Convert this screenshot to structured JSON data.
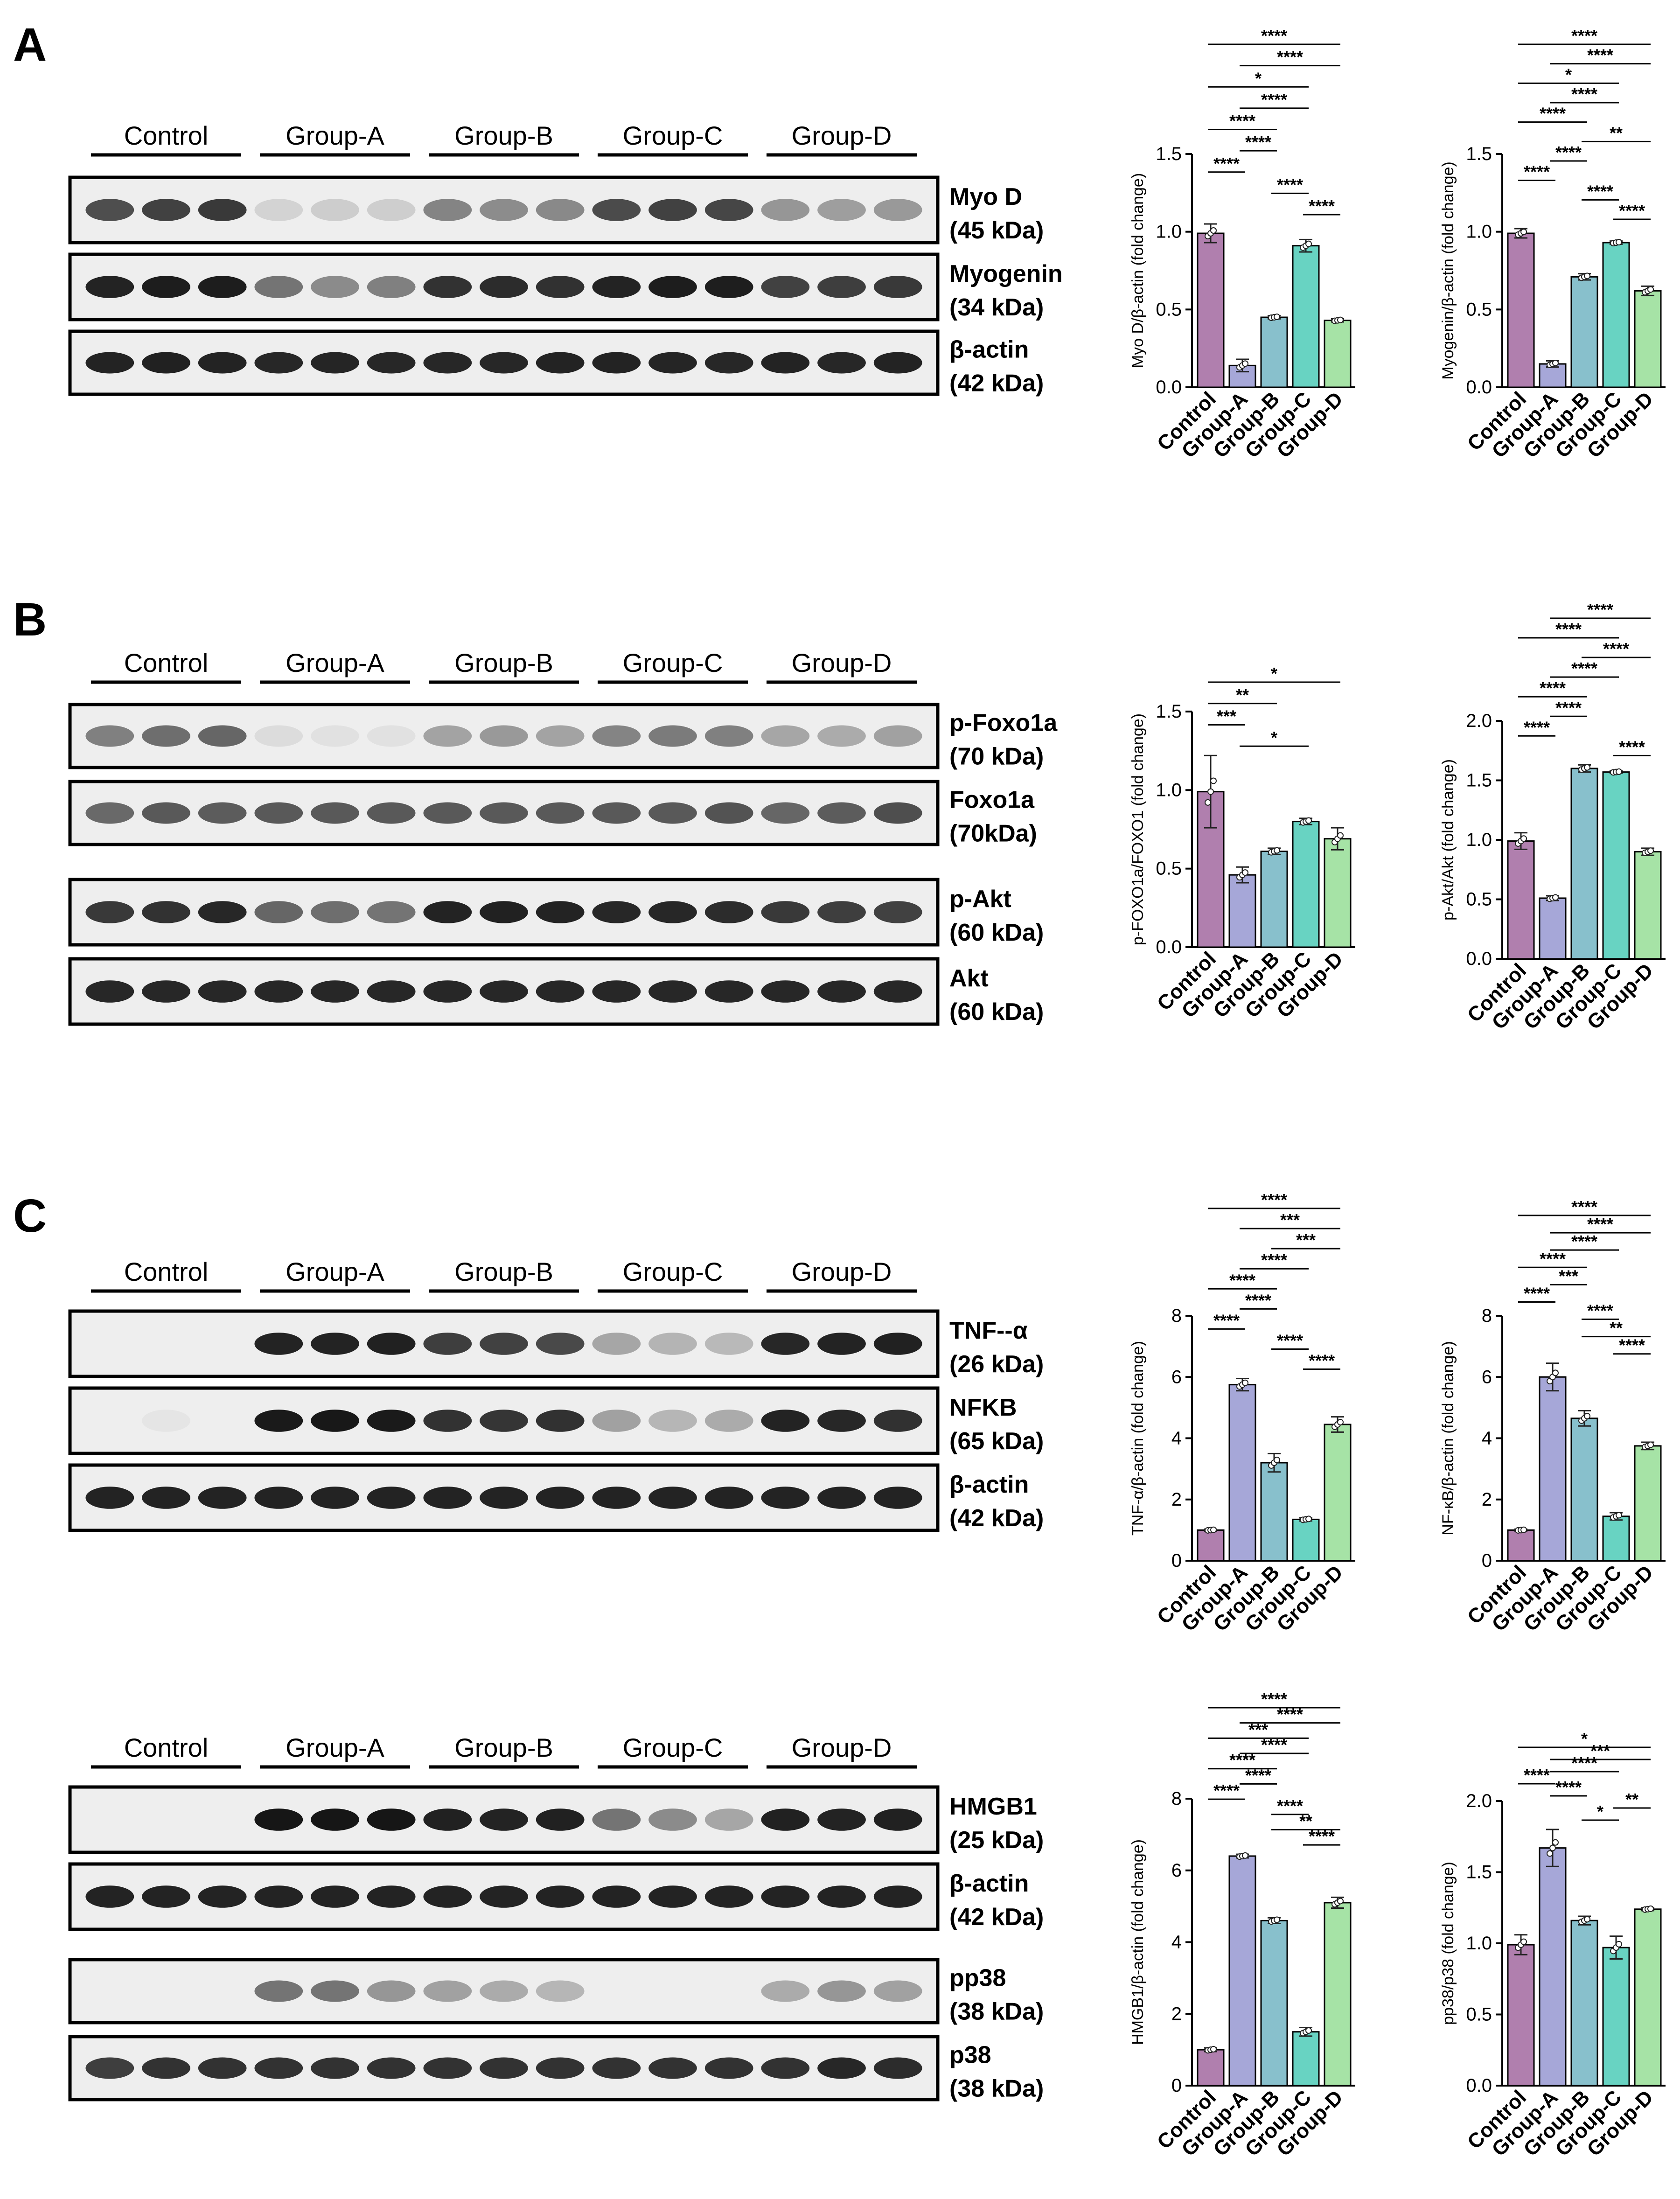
{
  "figure": {
    "groups": [
      "Control",
      "Group-A",
      "Group-B",
      "Group-C",
      "Group-D"
    ],
    "colors": [
      "#b07fae",
      "#a6a7d8",
      "#88c0cc",
      "#68d3c2",
      "#a6e3a6"
    ],
    "panels": {
      "A": {
        "letter": "A",
        "blots": [
          {
            "name": "Myo D",
            "kda": "(45 kDa)",
            "intensity": [
              0.72,
              0.78,
              0.82,
              0.12,
              0.15,
              0.14,
              0.48,
              0.44,
              0.46,
              0.74,
              0.78,
              0.76,
              0.4,
              0.36,
              0.38
            ]
          },
          {
            "name": "Myogenin",
            "kda": "(34 kDa)",
            "intensity": [
              0.92,
              0.95,
              0.95,
              0.55,
              0.45,
              0.5,
              0.85,
              0.88,
              0.86,
              0.92,
              0.95,
              0.94,
              0.78,
              0.8,
              0.82
            ]
          },
          {
            "name": "β-actin",
            "kda": "(42 kDa)",
            "intensity": [
              0.92,
              0.93,
              0.92,
              0.9,
              0.91,
              0.9,
              0.9,
              0.9,
              0.92,
              0.92,
              0.91,
              0.9,
              0.92,
              0.9,
              0.92
            ]
          }
        ]
      },
      "B": {
        "letter": "B",
        "blots": [
          {
            "name": "p-Foxo1a",
            "kda": "(70 kDa)",
            "intensity": [
              0.5,
              0.58,
              0.62,
              0.08,
              0.06,
              0.06,
              0.34,
              0.38,
              0.34,
              0.48,
              0.52,
              0.5,
              0.32,
              0.3,
              0.35
            ]
          },
          {
            "name": "Foxo1a",
            "kda": "(70kDa)",
            "intensity": [
              0.6,
              0.68,
              0.66,
              0.68,
              0.68,
              0.68,
              0.68,
              0.68,
              0.68,
              0.68,
              0.68,
              0.7,
              0.62,
              0.66,
              0.72
            ]
          },
          {
            "name": "p-Akt",
            "kda": "(60 kDa)",
            "intensity": [
              0.82,
              0.85,
              0.9,
              0.62,
              0.58,
              0.55,
              0.92,
              0.93,
              0.92,
              0.9,
              0.9,
              0.88,
              0.82,
              0.8,
              0.78
            ]
          },
          {
            "name": "Akt",
            "kda": "(60 kDa)",
            "intensity": [
              0.9,
              0.9,
              0.9,
              0.9,
              0.9,
              0.9,
              0.9,
              0.9,
              0.9,
              0.9,
              0.9,
              0.9,
              0.9,
              0.9,
              0.9
            ]
          }
        ]
      },
      "C": {
        "letter": "C",
        "blots1": [
          {
            "name": "TNF--α",
            "kda": "(26 kDa)",
            "intensity": [
              0.0,
              0.0,
              0.0,
              0.92,
              0.92,
              0.93,
              0.8,
              0.78,
              0.75,
              0.32,
              0.26,
              0.24,
              0.9,
              0.92,
              0.93
            ]
          },
          {
            "name": "NFKB",
            "kda": "(65 kDa)",
            "intensity": [
              0.0,
              0.04,
              0.0,
              0.96,
              0.97,
              0.96,
              0.85,
              0.84,
              0.86,
              0.35,
              0.25,
              0.3,
              0.92,
              0.9,
              0.86
            ]
          },
          {
            "name": "β-actin",
            "kda": "(42 kDa)",
            "intensity": [
              0.92,
              0.92,
              0.92,
              0.92,
              0.92,
              0.92,
              0.92,
              0.92,
              0.92,
              0.92,
              0.92,
              0.92,
              0.92,
              0.92,
              0.92
            ]
          }
        ],
        "blots2": [
          {
            "name": "HMGB1",
            "kda": "(25 kDa)",
            "intensity": [
              0.0,
              0.0,
              0.0,
              0.98,
              0.98,
              0.98,
              0.93,
              0.92,
              0.93,
              0.55,
              0.45,
              0.32,
              0.93,
              0.92,
              0.93
            ]
          },
          {
            "name": "β-actin",
            "kda": "(42 kDa)",
            "intensity": [
              0.92,
              0.92,
              0.92,
              0.92,
              0.92,
              0.92,
              0.92,
              0.92,
              0.92,
              0.92,
              0.92,
              0.92,
              0.92,
              0.92,
              0.92
            ]
          },
          {
            "name": "pp38",
            "kda": "(38 kDa)",
            "intensity": [
              0.0,
              0.0,
              0.0,
              0.55,
              0.55,
              0.4,
              0.35,
              0.3,
              0.25,
              0.0,
              0.0,
              0.0,
              0.3,
              0.4,
              0.35
            ]
          },
          {
            "name": "p38",
            "kda": "(38 kDa)",
            "intensity": [
              0.8,
              0.85,
              0.85,
              0.85,
              0.85,
              0.85,
              0.85,
              0.85,
              0.85,
              0.85,
              0.85,
              0.85,
              0.85,
              0.9,
              0.88
            ]
          }
        ]
      }
    }
  },
  "chart_data": [
    {
      "id": "A-myod",
      "type": "bar",
      "categories": [
        "Control",
        "Group-A",
        "Group-B",
        "Group-C",
        "Group-D"
      ],
      "values": [
        0.99,
        0.14,
        0.45,
        0.91,
        0.43
      ],
      "errors": [
        0.06,
        0.04,
        0.01,
        0.04,
        0.01
      ],
      "ylabel": "Myo D/β-actin (fold change)",
      "ylim": [
        0,
        1.5
      ],
      "yticks": [
        0.0,
        0.5,
        1.0,
        1.5
      ],
      "sig": [
        {
          "a": 0,
          "b": 4,
          "t": "****"
        },
        {
          "a": 1,
          "b": 4,
          "t": "****"
        },
        {
          "a": 0,
          "b": 3,
          "t": "*"
        },
        {
          "a": 1,
          "b": 3,
          "t": "****"
        },
        {
          "a": 0,
          "b": 2,
          "t": "****"
        },
        {
          "a": 1,
          "b": 2,
          "t": "****"
        },
        {
          "a": 0,
          "b": 1,
          "t": "****"
        },
        {
          "a": 2,
          "b": 3,
          "t": "****"
        },
        {
          "a": 3,
          "b": 4,
          "t": "****"
        }
      ]
    },
    {
      "id": "A-myogenin",
      "type": "bar",
      "categories": [
        "Control",
        "Group-A",
        "Group-B",
        "Group-C",
        "Group-D"
      ],
      "values": [
        0.99,
        0.15,
        0.71,
        0.93,
        0.62
      ],
      "errors": [
        0.03,
        0.02,
        0.02,
        0.01,
        0.03
      ],
      "ylabel": "Myogenin/β-actin (fold change)",
      "ylim": [
        0,
        1.5
      ],
      "yticks": [
        0.0,
        0.5,
        1.0,
        1.5
      ],
      "sig": [
        {
          "a": 0,
          "b": 4,
          "t": "****"
        },
        {
          "a": 1,
          "b": 4,
          "t": "****"
        },
        {
          "a": 0,
          "b": 3,
          "t": "*"
        },
        {
          "a": 1,
          "b": 3,
          "t": "****"
        },
        {
          "a": 0,
          "b": 2,
          "t": "****"
        },
        {
          "a": 2,
          "b": 4,
          "t": "**"
        },
        {
          "a": 1,
          "b": 2,
          "t": "****"
        },
        {
          "a": 0,
          "b": 1,
          "t": "****"
        },
        {
          "a": 2,
          "b": 3,
          "t": "****"
        },
        {
          "a": 3,
          "b": 4,
          "t": "****"
        }
      ]
    },
    {
      "id": "B-foxo",
      "type": "bar",
      "categories": [
        "Control",
        "Group-A",
        "Group-B",
        "Group-C",
        "Group-D"
      ],
      "values": [
        0.99,
        0.46,
        0.61,
        0.8,
        0.69
      ],
      "errors": [
        0.23,
        0.05,
        0.02,
        0.02,
        0.07
      ],
      "ylabel": "p-FOXO1a/FOXO1 (fold change)",
      "ylim": [
        0,
        1.5
      ],
      "yticks": [
        0.0,
        0.5,
        1.0,
        1.5
      ],
      "sig": [
        {
          "a": 0,
          "b": 4,
          "t": "*"
        },
        {
          "a": 0,
          "b": 2,
          "t": "**"
        },
        {
          "a": 0,
          "b": 1,
          "t": "***"
        },
        {
          "a": 1,
          "b": 3,
          "t": "*"
        }
      ]
    },
    {
      "id": "B-akt",
      "type": "bar",
      "categories": [
        "Control",
        "Group-A",
        "Group-B",
        "Group-C",
        "Group-D"
      ],
      "values": [
        0.99,
        0.51,
        1.6,
        1.57,
        0.9
      ],
      "errors": [
        0.07,
        0.02,
        0.03,
        0.01,
        0.03
      ],
      "ylabel": "p-Akt/Akt (fold change)",
      "ylim": [
        0,
        2.0
      ],
      "yticks": [
        0.0,
        0.5,
        1.0,
        1.5,
        2.0
      ],
      "sig": [
        {
          "a": 1,
          "b": 4,
          "t": "****"
        },
        {
          "a": 0,
          "b": 3,
          "t": "****"
        },
        {
          "a": 2,
          "b": 4,
          "t": "****"
        },
        {
          "a": 1,
          "b": 3,
          "t": "****"
        },
        {
          "a": 0,
          "b": 2,
          "t": "****"
        },
        {
          "a": 1,
          "b": 2,
          "t": "****"
        },
        {
          "a": 0,
          "b": 1,
          "t": "****"
        },
        {
          "a": 3,
          "b": 4,
          "t": "****"
        }
      ]
    },
    {
      "id": "C-tnf",
      "type": "bar",
      "categories": [
        "Control",
        "Group-A",
        "Group-B",
        "Group-C",
        "Group-D"
      ],
      "values": [
        1.0,
        5.75,
        3.2,
        1.35,
        4.45
      ],
      "errors": [
        0.03,
        0.2,
        0.3,
        0.05,
        0.25
      ],
      "ylabel": "TNF-α/β-actin (fold change)",
      "ylim": [
        0,
        8
      ],
      "yticks": [
        0,
        2,
        4,
        6,
        8
      ],
      "sig": [
        {
          "a": 0,
          "b": 4,
          "t": "****"
        },
        {
          "a": 1,
          "b": 4,
          "t": "***"
        },
        {
          "a": 2,
          "b": 4,
          "t": "***"
        },
        {
          "a": 1,
          "b": 3,
          "t": "****"
        },
        {
          "a": 0,
          "b": 2,
          "t": "****"
        },
        {
          "a": 1,
          "b": 2,
          "t": "****"
        },
        {
          "a": 0,
          "b": 1,
          "t": "****"
        },
        {
          "a": 2,
          "b": 3,
          "t": "****"
        },
        {
          "a": 3,
          "b": 4,
          "t": "****"
        }
      ]
    },
    {
      "id": "C-nfkb",
      "type": "bar",
      "categories": [
        "Control",
        "Group-A",
        "Group-B",
        "Group-C",
        "Group-D"
      ],
      "values": [
        1.0,
        6.0,
        4.65,
        1.45,
        3.75
      ],
      "errors": [
        0.03,
        0.45,
        0.25,
        0.12,
        0.12
      ],
      "ylabel": "NF-κB/β-actin (fold change)",
      "ylim": [
        0,
        8
      ],
      "yticks": [
        0,
        2,
        4,
        6,
        8
      ],
      "sig": [
        {
          "a": 0,
          "b": 4,
          "t": "****"
        },
        {
          "a": 1,
          "b": 4,
          "t": "****"
        },
        {
          "a": 1,
          "b": 3,
          "t": "****"
        },
        {
          "a": 0,
          "b": 2,
          "t": "****"
        },
        {
          "a": 1,
          "b": 2,
          "t": "***"
        },
        {
          "a": 0,
          "b": 1,
          "t": "****"
        },
        {
          "a": 2,
          "b": 3,
          "t": "****"
        },
        {
          "a": 2,
          "b": 4,
          "t": "**"
        },
        {
          "a": 3,
          "b": 4,
          "t": "****"
        }
      ]
    },
    {
      "id": "C-hmgb1",
      "type": "bar",
      "categories": [
        "Control",
        "Group-A",
        "Group-B",
        "Group-C",
        "Group-D"
      ],
      "values": [
        1.0,
        6.4,
        4.6,
        1.5,
        5.1
      ],
      "errors": [
        0.05,
        0.05,
        0.08,
        0.12,
        0.15
      ],
      "ylabel": "HMGB1/β-actin (fold change)",
      "ylim": [
        0,
        8
      ],
      "yticks": [
        0,
        2,
        4,
        6,
        8
      ],
      "sig": [
        {
          "a": 0,
          "b": 4,
          "t": "****"
        },
        {
          "a": 1,
          "b": 4,
          "t": "****"
        },
        {
          "a": 0,
          "b": 3,
          "t": "***"
        },
        {
          "a": 1,
          "b": 3,
          "t": "****"
        },
        {
          "a": 0,
          "b": 2,
          "t": "****"
        },
        {
          "a": 1,
          "b": 2,
          "t": "****"
        },
        {
          "a": 0,
          "b": 1,
          "t": "****"
        },
        {
          "a": 2,
          "b": 3,
          "t": "****"
        },
        {
          "a": 2,
          "b": 4,
          "t": "**"
        },
        {
          "a": 3,
          "b": 4,
          "t": "****"
        }
      ]
    },
    {
      "id": "C-pp38",
      "type": "bar",
      "categories": [
        "Control",
        "Group-A",
        "Group-B",
        "Group-C",
        "Group-D"
      ],
      "values": [
        0.99,
        1.67,
        1.16,
        0.97,
        1.24
      ],
      "errors": [
        0.07,
        0.13,
        0.03,
        0.08,
        0.01
      ],
      "ylabel": "pp38/p38 (fold change)",
      "ylim": [
        0,
        2.0
      ],
      "yticks": [
        0.0,
        0.5,
        1.0,
        1.5,
        2.0
      ],
      "sig": [
        {
          "a": 0,
          "b": 4,
          "t": "*"
        },
        {
          "a": 1,
          "b": 4,
          "t": "***"
        },
        {
          "a": 1,
          "b": 3,
          "t": "****"
        },
        {
          "a": 0,
          "b": 1,
          "t": "****"
        },
        {
          "a": 1,
          "b": 2,
          "t": "****"
        },
        {
          "a": 3,
          "b": 4,
          "t": "**"
        },
        {
          "a": 2,
          "b": 3,
          "t": "*"
        }
      ]
    }
  ]
}
